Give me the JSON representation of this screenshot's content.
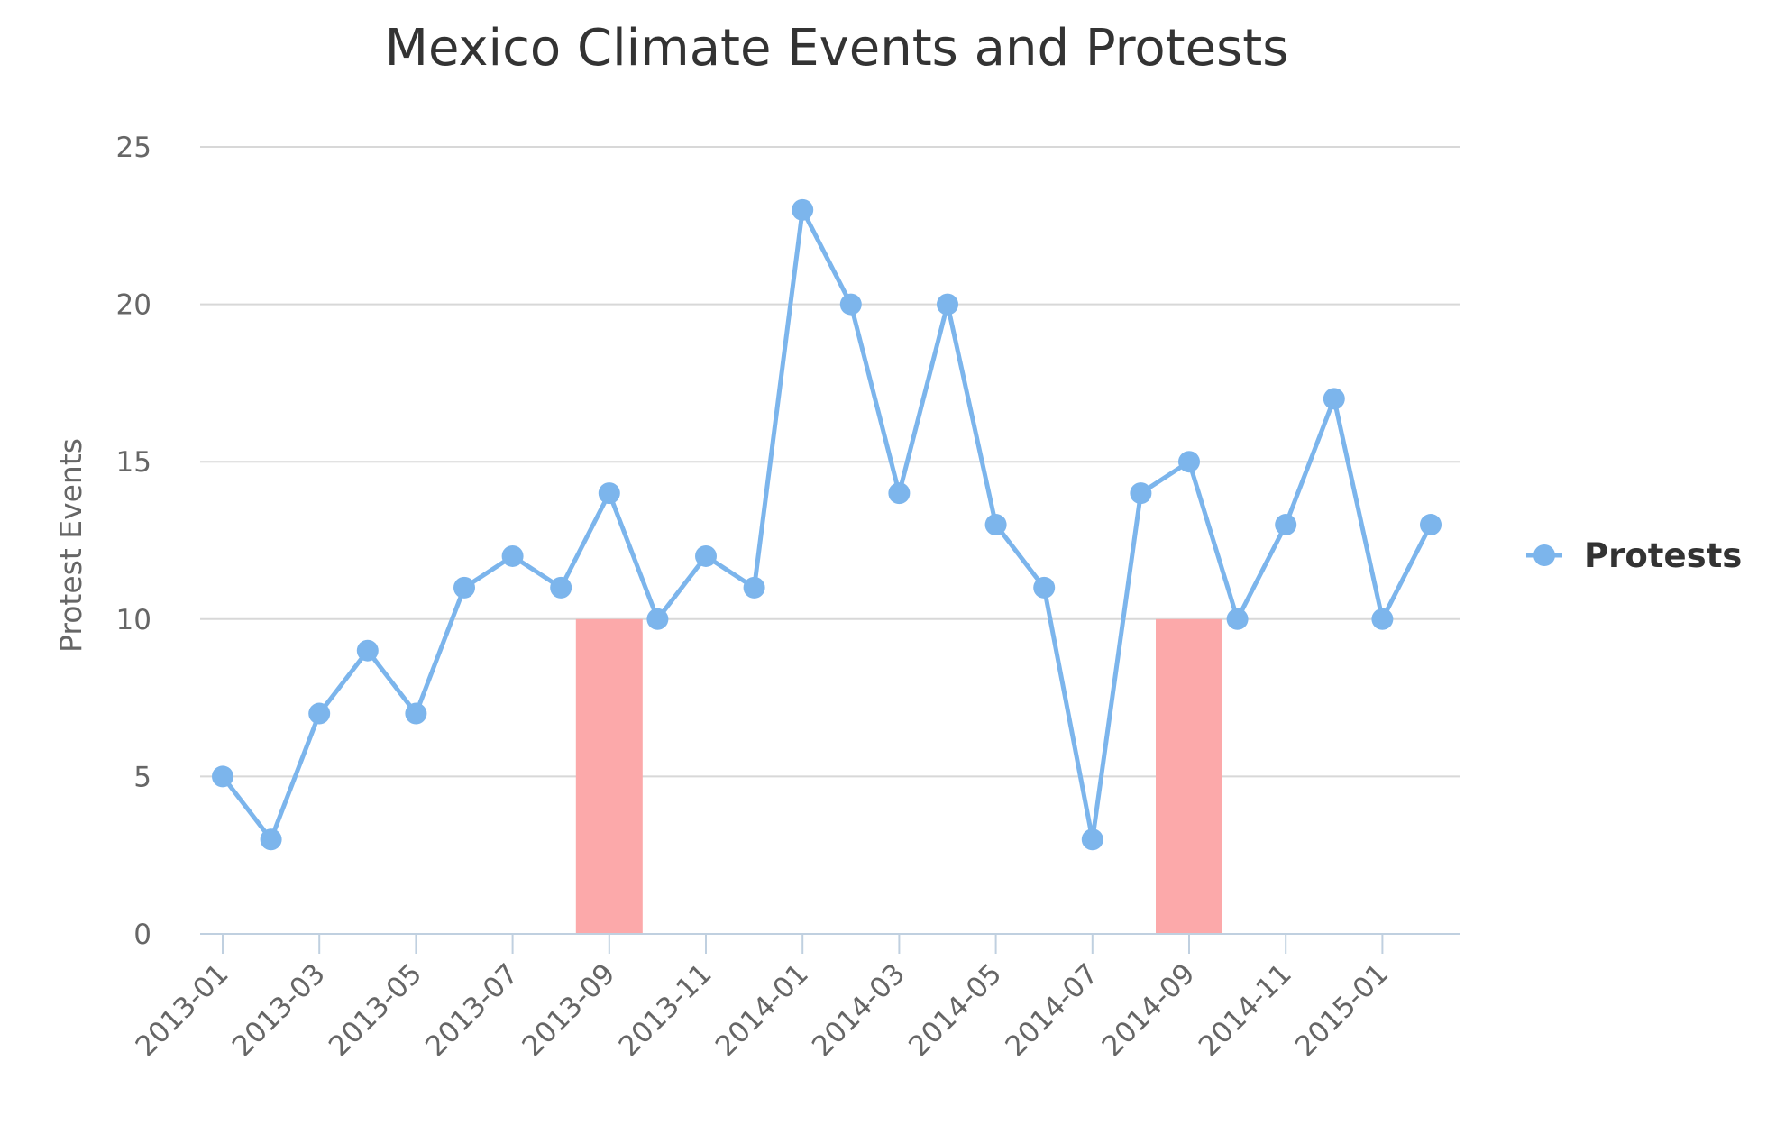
{
  "colors": {
    "series_line": "#7cb5ec",
    "event_bar": "#fca9aa",
    "grid": "#d8d8d8",
    "axis": "#c0d0e0",
    "title_text": "#333333",
    "label_text": "#666666"
  },
  "chart_data": {
    "type": "line",
    "title": "Mexico Climate Events and Protests",
    "xlabel": "",
    "ylabel": "Protest Events",
    "ylim": [
      0,
      25
    ],
    "yticks": [
      0,
      5,
      10,
      15,
      20,
      25
    ],
    "grid": true,
    "legend_placement": "right",
    "x": [
      "2013-01",
      "2013-02",
      "2013-03",
      "2013-04",
      "2013-05",
      "2013-06",
      "2013-07",
      "2013-08",
      "2013-09",
      "2013-10",
      "2013-11",
      "2013-12",
      "2014-01",
      "2014-02",
      "2014-03",
      "2014-04",
      "2014-05",
      "2014-06",
      "2014-07",
      "2014-08",
      "2014-09",
      "2014-10",
      "2014-11",
      "2014-12",
      "2015-01",
      "2015-02"
    ],
    "xtick_labels": [
      "2013-01",
      "2013-03",
      "2013-05",
      "2013-07",
      "2013-09",
      "2013-11",
      "2014-01",
      "2014-03",
      "2014-05",
      "2014-07",
      "2014-09",
      "2014-11",
      "2015-01"
    ],
    "series": [
      {
        "name": "Protests",
        "values": [
          5,
          3,
          7,
          9,
          7,
          11,
          12,
          11,
          14,
          10,
          12,
          11,
          23,
          20,
          14,
          20,
          13,
          11,
          3,
          14,
          15,
          10,
          13,
          17,
          10,
          13
        ]
      }
    ],
    "climate_events": [
      {
        "x": "2013-09",
        "value": 10
      },
      {
        "x": "2014-09",
        "value": 10
      }
    ]
  }
}
